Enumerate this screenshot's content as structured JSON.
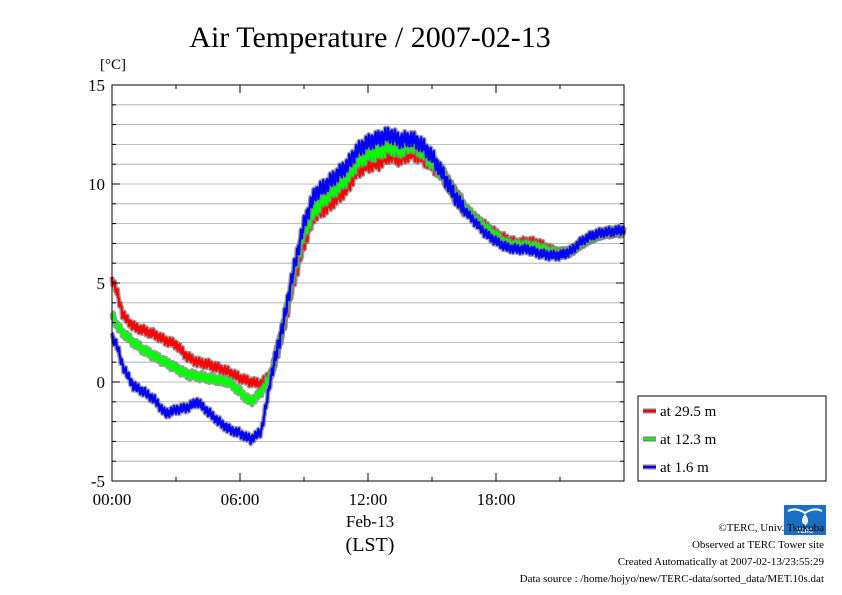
{
  "chart_data": {
    "type": "line",
    "title": "Air Temperature / 2007-02-13",
    "unit_label": "[°C]",
    "ylim": [
      -5,
      15
    ],
    "y_ticks": [
      -5,
      0,
      5,
      10,
      15
    ],
    "y_tick_labels": [
      "-5",
      "0",
      "5",
      "10",
      "15"
    ],
    "x_range_hours": [
      0,
      24
    ],
    "x_ticks": [
      0,
      6,
      12,
      18
    ],
    "x_tick_labels": [
      "00:00",
      "06:00",
      "12:00",
      "18:00"
    ],
    "date_label": "Feb-13",
    "xlabel": "(LST)",
    "grid": true,
    "legend_position": "right-bottom outside",
    "x_hours": [
      0,
      0.25,
      0.5,
      1,
      1.5,
      2,
      2.5,
      3,
      3.5,
      4,
      4.5,
      5,
      5.5,
      6,
      6.5,
      7,
      7.25,
      7.5,
      8,
      8.5,
      9,
      9.5,
      10,
      10.5,
      11,
      11.5,
      12,
      12.5,
      13,
      13.5,
      14,
      14.5,
      15,
      15.5,
      16,
      16.5,
      17,
      17.5,
      18,
      18.5,
      19,
      19.5,
      20,
      20.5,
      21,
      21.5,
      22,
      22.5,
      23,
      23.5,
      24
    ],
    "series": [
      {
        "name": "at 29.5 m",
        "color": "#ff0000",
        "values": [
          5.2,
          4.5,
          3.4,
          2.8,
          2.6,
          2.4,
          2.1,
          1.9,
          1.3,
          1.0,
          0.9,
          0.7,
          0.5,
          0.2,
          0.0,
          -0.1,
          0.2,
          0.5,
          2.5,
          5.0,
          7.0,
          8.5,
          8.8,
          9.3,
          9.8,
          10.7,
          11.0,
          11.1,
          11.5,
          11.3,
          11.6,
          11.4,
          11.0,
          10.5,
          9.6,
          8.8,
          8.3,
          7.9,
          7.5,
          7.2,
          7.0,
          7.1,
          7.0,
          6.7,
          6.5,
          6.6,
          7.0,
          7.3,
          7.5,
          7.55,
          7.6
        ]
      },
      {
        "name": "at 12.3 m",
        "color": "#00ff00",
        "values": [
          3.5,
          2.8,
          2.5,
          2.0,
          1.6,
          1.3,
          1.0,
          0.7,
          0.4,
          0.3,
          0.2,
          0.1,
          0.0,
          -0.5,
          -1.0,
          -0.5,
          0.0,
          0.5,
          2.7,
          5.3,
          7.5,
          8.7,
          9.3,
          9.8,
          10.3,
          11.1,
          11.5,
          11.6,
          11.9,
          11.7,
          12.0,
          11.7,
          11.1,
          10.5,
          9.6,
          8.9,
          8.3,
          7.8,
          7.4,
          7.0,
          6.9,
          6.9,
          6.8,
          6.6,
          6.5,
          6.6,
          7.0,
          7.3,
          7.5,
          7.6,
          7.6
        ]
      },
      {
        "name": "at 1.6 m",
        "color": "#0000ff",
        "values": [
          2.3,
          1.8,
          0.8,
          -0.2,
          -0.5,
          -0.9,
          -1.6,
          -1.4,
          -1.3,
          -1.0,
          -1.5,
          -2.0,
          -2.4,
          -2.6,
          -2.9,
          -2.5,
          -1.0,
          0.5,
          2.8,
          5.6,
          8.0,
          9.5,
          9.9,
          10.4,
          10.9,
          11.7,
          12.1,
          12.3,
          12.5,
          12.2,
          12.3,
          12.0,
          11.4,
          10.5,
          9.5,
          8.7,
          8.1,
          7.5,
          7.1,
          6.8,
          6.7,
          6.7,
          6.5,
          6.4,
          6.4,
          6.6,
          7.1,
          7.4,
          7.55,
          7.6,
          7.7
        ]
      }
    ]
  },
  "footer": {
    "copyright": "©TERC, Univ. Tsukuba",
    "observed": "Observed at TERC Tower site",
    "created": "Created Automatically at 2007-02-13/23:55:29",
    "source": "Data source : /home/hojyo/new/TERC-data/sorted_data/MET.10s.dat",
    "logo_text": "TERC"
  }
}
